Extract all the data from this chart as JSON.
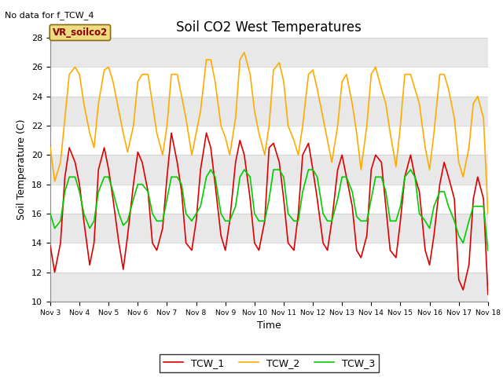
{
  "title": "Soil CO2 West Temperatures",
  "xlabel": "Time",
  "ylabel": "Soil Temperature (C)",
  "no_data_text": "No data for f_TCW_4",
  "annotation_box_text": "VR_soilco2",
  "ylim": [
    10,
    28
  ],
  "xlim": [
    0,
    15
  ],
  "xtick_labels": [
    "Nov 3",
    "Nov 4",
    "Nov 5",
    "Nov 6",
    "Nov 7",
    "Nov 8",
    "Nov 9",
    "Nov 10",
    "Nov 11",
    "Nov 12",
    "Nov 13",
    "Nov 14",
    "Nov 15",
    "Nov 16",
    "Nov 17",
    "Nov 18"
  ],
  "ytick_values": [
    10,
    12,
    14,
    16,
    18,
    20,
    22,
    24,
    26,
    28
  ],
  "bg_color": "#ffffff",
  "band_color": "#e8e8e8",
  "line_colors": {
    "TCW_1": "#dd0000",
    "TCW_2": "#ffaa00",
    "TCW_3": "#00cc00"
  },
  "TCW_1_x": [
    0,
    0.15,
    0.35,
    0.5,
    0.65,
    0.85,
    1.0,
    1.15,
    1.35,
    1.5,
    1.65,
    1.85,
    2.0,
    2.15,
    2.35,
    2.5,
    2.65,
    2.85,
    3.0,
    3.15,
    3.35,
    3.5,
    3.65,
    3.85,
    4.0,
    4.15,
    4.35,
    4.5,
    4.65,
    4.85,
    5.0,
    5.15,
    5.35,
    5.5,
    5.65,
    5.85,
    6.0,
    6.15,
    6.35,
    6.5,
    6.65,
    6.85,
    7.0,
    7.15,
    7.35,
    7.5,
    7.65,
    7.85,
    8.0,
    8.15,
    8.35,
    8.5,
    8.65,
    8.85,
    9.0,
    9.15,
    9.35,
    9.5,
    9.65,
    9.85,
    10.0,
    10.15,
    10.35,
    10.5,
    10.65,
    10.85,
    11.0,
    11.15,
    11.35,
    11.5,
    11.65,
    11.85,
    12.0,
    12.15,
    12.35,
    12.5,
    12.65,
    12.85,
    13.0,
    13.15,
    13.35,
    13.5,
    13.65,
    13.85,
    14.0,
    14.15,
    14.35,
    14.5,
    14.65,
    14.85,
    15.0
  ],
  "TCW_1_y": [
    13.8,
    12.0,
    14.0,
    18.5,
    20.5,
    19.5,
    18.0,
    15.5,
    12.5,
    14.0,
    19.0,
    20.5,
    19.0,
    17.0,
    14.0,
    12.2,
    14.5,
    18.0,
    20.2,
    19.5,
    17.5,
    14.0,
    13.5,
    15.0,
    18.5,
    21.5,
    19.5,
    17.5,
    14.0,
    13.5,
    15.5,
    19.0,
    21.5,
    20.5,
    18.0,
    14.5,
    13.5,
    15.5,
    19.5,
    21.0,
    20.0,
    17.0,
    14.0,
    13.5,
    15.5,
    20.5,
    20.8,
    19.5,
    17.0,
    14.0,
    13.5,
    16.0,
    20.0,
    20.8,
    19.0,
    17.0,
    14.0,
    13.5,
    15.5,
    19.0,
    20.0,
    18.5,
    16.5,
    13.5,
    13.0,
    14.5,
    19.0,
    20.0,
    19.5,
    16.5,
    13.5,
    13.0,
    15.5,
    18.5,
    20.0,
    18.5,
    17.5,
    13.5,
    12.5,
    14.5,
    18.0,
    19.5,
    18.5,
    17.0,
    11.5,
    10.8,
    12.5,
    17.0,
    18.5,
    17.0,
    10.5
  ],
  "TCW_2_x": [
    0,
    0.15,
    0.35,
    0.5,
    0.65,
    0.85,
    1.0,
    1.15,
    1.35,
    1.5,
    1.65,
    1.85,
    2.0,
    2.15,
    2.35,
    2.5,
    2.65,
    2.85,
    3.0,
    3.15,
    3.35,
    3.5,
    3.65,
    3.85,
    4.0,
    4.15,
    4.35,
    4.5,
    4.65,
    4.85,
    5.0,
    5.15,
    5.35,
    5.5,
    5.65,
    5.85,
    6.0,
    6.15,
    6.35,
    6.5,
    6.65,
    6.85,
    7.0,
    7.15,
    7.35,
    7.5,
    7.65,
    7.85,
    8.0,
    8.15,
    8.35,
    8.5,
    8.65,
    8.85,
    9.0,
    9.15,
    9.35,
    9.5,
    9.65,
    9.85,
    10.0,
    10.15,
    10.35,
    10.5,
    10.65,
    10.85,
    11.0,
    11.15,
    11.35,
    11.5,
    11.65,
    11.85,
    12.0,
    12.15,
    12.35,
    12.5,
    12.65,
    12.85,
    13.0,
    13.15,
    13.35,
    13.5,
    13.65,
    13.85,
    14.0,
    14.15,
    14.35,
    14.5,
    14.65,
    14.85,
    15.0
  ],
  "TCW_2_y": [
    20.5,
    18.2,
    19.5,
    22.5,
    25.5,
    26.0,
    25.5,
    23.5,
    21.5,
    20.5,
    23.5,
    25.8,
    26.0,
    25.0,
    23.0,
    21.5,
    20.2,
    22.0,
    25.0,
    25.5,
    25.5,
    23.5,
    21.5,
    20.0,
    22.0,
    25.5,
    25.5,
    24.0,
    22.5,
    20.0,
    21.5,
    23.0,
    26.5,
    26.5,
    25.0,
    22.0,
    21.2,
    20.0,
    22.5,
    26.5,
    27.0,
    25.5,
    23.0,
    21.5,
    20.0,
    22.0,
    25.8,
    26.3,
    25.0,
    22.0,
    21.0,
    20.0,
    22.0,
    25.5,
    25.8,
    24.5,
    22.5,
    21.0,
    19.5,
    22.0,
    25.0,
    25.5,
    23.5,
    21.5,
    19.0,
    22.0,
    25.5,
    26.0,
    24.5,
    23.5,
    21.5,
    19.2,
    22.0,
    25.5,
    25.5,
    24.5,
    23.5,
    20.5,
    19.0,
    21.5,
    25.5,
    25.5,
    24.5,
    22.5,
    19.5,
    18.5,
    20.5,
    23.5,
    24.0,
    22.5,
    16.0
  ],
  "TCW_3_x": [
    0,
    0.15,
    0.35,
    0.5,
    0.65,
    0.85,
    1.0,
    1.15,
    1.35,
    1.5,
    1.65,
    1.85,
    2.0,
    2.15,
    2.35,
    2.5,
    2.65,
    2.85,
    3.0,
    3.15,
    3.35,
    3.5,
    3.65,
    3.85,
    4.0,
    4.15,
    4.35,
    4.5,
    4.65,
    4.85,
    5.0,
    5.15,
    5.35,
    5.5,
    5.65,
    5.85,
    6.0,
    6.15,
    6.35,
    6.5,
    6.65,
    6.85,
    7.0,
    7.15,
    7.35,
    7.5,
    7.65,
    7.85,
    8.0,
    8.15,
    8.35,
    8.5,
    8.65,
    8.85,
    9.0,
    9.15,
    9.35,
    9.5,
    9.65,
    9.85,
    10.0,
    10.15,
    10.35,
    10.5,
    10.65,
    10.85,
    11.0,
    11.15,
    11.35,
    11.5,
    11.65,
    11.85,
    12.0,
    12.15,
    12.35,
    12.5,
    12.65,
    12.85,
    13.0,
    13.15,
    13.35,
    13.5,
    13.65,
    13.85,
    14.0,
    14.15,
    14.35,
    14.5,
    14.65,
    14.85,
    15.0
  ],
  "TCW_3_y": [
    16.0,
    15.0,
    15.5,
    17.5,
    18.5,
    18.5,
    17.5,
    16.0,
    15.0,
    15.5,
    17.5,
    18.5,
    18.5,
    17.5,
    16.0,
    15.2,
    15.5,
    17.0,
    18.0,
    18.0,
    17.5,
    16.0,
    15.5,
    15.5,
    17.0,
    18.5,
    18.5,
    18.0,
    16.0,
    15.5,
    16.0,
    16.5,
    18.5,
    19.0,
    18.5,
    16.0,
    15.5,
    15.5,
    16.5,
    18.5,
    19.0,
    18.5,
    16.0,
    15.5,
    15.5,
    17.0,
    19.0,
    19.0,
    18.5,
    16.0,
    15.5,
    15.5,
    17.5,
    19.0,
    19.0,
    18.5,
    16.0,
    15.5,
    15.5,
    17.0,
    18.5,
    18.5,
    17.5,
    15.8,
    15.5,
    15.5,
    17.0,
    18.5,
    18.5,
    17.5,
    15.5,
    15.5,
    16.5,
    18.5,
    19.0,
    18.5,
    16.0,
    15.5,
    15.0,
    16.5,
    17.5,
    17.5,
    16.5,
    15.5,
    14.5,
    14.0,
    15.5,
    16.5,
    16.5,
    16.5,
    13.5
  ]
}
